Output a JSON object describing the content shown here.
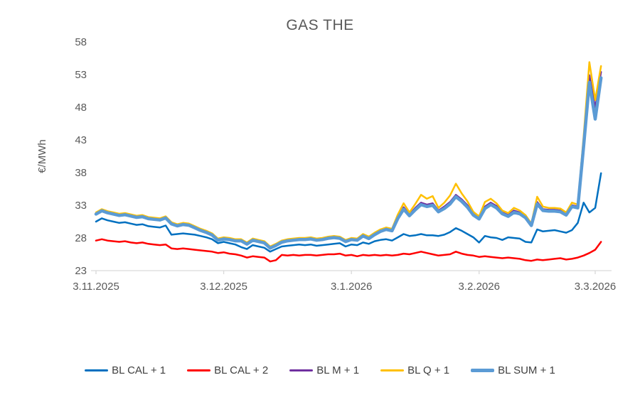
{
  "title": "GAS THE",
  "y_axis_label": "€/MWh",
  "colors": {
    "axis_text": "#595959",
    "axis_line": "#D9D9D9",
    "legend_text": "#404040",
    "background": "#ffffff"
  },
  "chart_data": {
    "type": "line",
    "title": "GAS THE",
    "xlabel": "",
    "ylabel": "€/MWh",
    "ylim": [
      23,
      58
    ],
    "y_ticks": [
      23,
      28,
      33,
      38,
      43,
      48,
      53,
      58
    ],
    "grid": false,
    "legend_position": "bottom",
    "x_tick_labels": [
      "3.11.2025",
      "3.12.2025",
      "3.1.2026",
      "3.2.2026",
      "3.3.2026"
    ],
    "x_tick_indices": [
      0,
      22,
      44,
      66,
      86
    ],
    "dates": [
      "3.11.2025",
      "4.11.2025",
      "5.11.2025",
      "6.11.2025",
      "7.11.2025",
      "10.11.2025",
      "11.11.2025",
      "12.11.2025",
      "13.11.2025",
      "14.11.2025",
      "17.11.2025",
      "18.11.2025",
      "19.11.2025",
      "20.11.2025",
      "21.11.2025",
      "24.11.2025",
      "25.11.2025",
      "26.11.2025",
      "27.11.2025",
      "28.11.2025",
      "1.12.2025",
      "2.12.2025",
      "3.12.2025",
      "4.12.2025",
      "5.12.2025",
      "8.12.2025",
      "9.12.2025",
      "10.12.2025",
      "11.12.2025",
      "12.12.2025",
      "15.12.2025",
      "16.12.2025",
      "17.12.2025",
      "18.12.2025",
      "19.12.2025",
      "22.12.2025",
      "23.12.2025",
      "24.12.2025",
      "25.12.2025",
      "26.12.2025",
      "29.12.2025",
      "30.12.2025",
      "31.12.2025",
      "1.1.2026",
      "2.1.2026",
      "5.1.2026",
      "6.1.2026",
      "7.1.2026",
      "8.1.2026",
      "9.1.2026",
      "12.1.2026",
      "13.1.2026",
      "14.1.2026",
      "15.1.2026",
      "16.1.2026",
      "19.1.2026",
      "20.1.2026",
      "21.1.2026",
      "22.1.2026",
      "23.1.2026",
      "26.1.2026",
      "27.1.2026",
      "28.1.2026",
      "29.1.2026",
      "30.1.2026",
      "2.2.2026",
      "3.2.2026",
      "4.2.2026",
      "5.2.2026",
      "6.2.2026",
      "9.2.2026",
      "10.2.2026",
      "11.2.2026",
      "12.2.2026",
      "13.2.2026",
      "16.2.2026",
      "17.2.2026",
      "18.2.2026",
      "19.2.2026",
      "20.2.2026",
      "23.2.2026",
      "24.2.2026",
      "25.2.2026",
      "26.2.2026",
      "27.2.2026",
      "2.3.2026",
      "3.3.2026",
      "4.3.2026"
    ],
    "series": [
      {
        "name": "BL CAL + 1",
        "color": "#0070C0",
        "width": 2.5,
        "values": [
          30.5,
          31.0,
          30.7,
          30.5,
          30.3,
          30.4,
          30.2,
          30.0,
          30.1,
          29.8,
          29.7,
          29.6,
          29.9,
          28.5,
          28.6,
          28.7,
          28.6,
          28.5,
          28.3,
          28.1,
          27.8,
          27.2,
          27.4,
          27.2,
          27.0,
          26.6,
          26.3,
          26.9,
          26.7,
          26.5,
          25.9,
          26.3,
          26.7,
          26.8,
          26.9,
          27.0,
          26.9,
          27.0,
          26.8,
          26.9,
          27.0,
          27.1,
          27.2,
          26.7,
          27.0,
          26.9,
          27.3,
          27.1,
          27.5,
          27.7,
          27.8,
          27.6,
          28.1,
          28.6,
          28.3,
          28.4,
          28.6,
          28.4,
          28.4,
          28.3,
          28.5,
          28.9,
          29.5,
          29.1,
          28.6,
          28.1,
          27.3,
          28.3,
          28.1,
          28.0,
          27.7,
          28.1,
          28.0,
          27.9,
          27.4,
          27.3,
          29.3,
          29.0,
          29.1,
          29.2,
          29.0,
          28.8,
          29.2,
          30.3,
          33.4,
          31.9,
          32.6,
          37.9
        ]
      },
      {
        "name": "BL CAL + 2",
        "color": "#FF0000",
        "width": 2.5,
        "values": [
          27.6,
          27.8,
          27.6,
          27.5,
          27.4,
          27.5,
          27.3,
          27.2,
          27.3,
          27.1,
          27.0,
          26.9,
          27.0,
          26.4,
          26.3,
          26.4,
          26.3,
          26.2,
          26.1,
          26.0,
          25.9,
          25.7,
          25.8,
          25.6,
          25.5,
          25.3,
          25.0,
          25.2,
          25.1,
          25.0,
          24.4,
          24.6,
          25.4,
          25.3,
          25.4,
          25.3,
          25.4,
          25.4,
          25.3,
          25.4,
          25.5,
          25.5,
          25.6,
          25.3,
          25.4,
          25.2,
          25.4,
          25.3,
          25.4,
          25.3,
          25.4,
          25.3,
          25.4,
          25.6,
          25.5,
          25.7,
          25.9,
          25.7,
          25.5,
          25.3,
          25.4,
          25.5,
          25.9,
          25.6,
          25.4,
          25.3,
          25.1,
          25.2,
          25.1,
          25.0,
          24.9,
          25.0,
          24.9,
          24.8,
          24.6,
          24.5,
          24.7,
          24.6,
          24.7,
          24.8,
          24.9,
          24.7,
          24.8,
          25.0,
          25.3,
          25.7,
          26.2,
          27.4
        ]
      },
      {
        "name": "BL M + 1",
        "color": "#7030A0",
        "width": 2.5,
        "values": [
          31.75,
          32.25,
          31.95,
          31.75,
          31.55,
          31.65,
          31.45,
          31.25,
          31.35,
          31.05,
          30.95,
          30.85,
          31.15,
          30.25,
          29.95,
          30.15,
          30.05,
          29.65,
          29.25,
          28.95,
          28.55,
          27.75,
          27.95,
          27.85,
          27.65,
          27.65,
          27.15,
          27.75,
          27.55,
          27.35,
          26.55,
          26.95,
          27.45,
          27.65,
          27.75,
          27.85,
          27.85,
          27.95,
          27.75,
          27.85,
          28.05,
          28.15,
          28.05,
          27.55,
          27.85,
          27.75,
          28.4,
          28.0,
          28.6,
          29.1,
          29.4,
          29.2,
          31.2,
          32.7,
          31.6,
          32.6,
          33.4,
          33.1,
          33.3,
          32.2,
          32.8,
          33.5,
          34.6,
          33.9,
          33.0,
          31.7,
          31.1,
          32.8,
          33.4,
          32.9,
          31.9,
          31.5,
          32.2,
          31.9,
          31.3,
          30.0,
          33.5,
          32.4,
          32.3,
          32.3,
          32.2,
          31.7,
          33.0,
          32.8,
          42.8,
          52.9,
          47.9,
          53.4
        ]
      },
      {
        "name": "BL Q + 1",
        "color": "#FFC000",
        "width": 2.5,
        "values": [
          31.9,
          32.4,
          32.1,
          31.9,
          31.7,
          31.8,
          31.6,
          31.4,
          31.5,
          31.2,
          31.1,
          31.0,
          31.3,
          30.4,
          30.1,
          30.3,
          30.2,
          29.8,
          29.4,
          29.1,
          28.7,
          27.9,
          28.1,
          28.0,
          27.8,
          27.8,
          27.3,
          27.9,
          27.7,
          27.5,
          26.7,
          27.1,
          27.6,
          27.8,
          27.9,
          28.0,
          28.0,
          28.1,
          27.9,
          28.0,
          28.2,
          28.3,
          28.2,
          27.7,
          28.0,
          27.9,
          28.6,
          28.2,
          28.8,
          29.3,
          29.6,
          29.4,
          31.6,
          33.3,
          31.9,
          33.2,
          34.6,
          34.0,
          34.4,
          32.6,
          33.4,
          34.5,
          36.3,
          34.8,
          33.6,
          32.0,
          31.3,
          33.5,
          34.0,
          33.3,
          32.2,
          31.8,
          32.6,
          32.2,
          31.5,
          30.2,
          34.3,
          32.8,
          32.6,
          32.6,
          32.5,
          31.9,
          33.4,
          33.1,
          43.5,
          54.9,
          49.1,
          54.3
        ]
      },
      {
        "name": "BL SUM + 1",
        "color": "#5B9BD5",
        "width": 4.5,
        "values": [
          31.65,
          32.15,
          31.85,
          31.65,
          31.45,
          31.55,
          31.35,
          31.15,
          31.25,
          30.95,
          30.85,
          30.75,
          31.05,
          30.15,
          29.85,
          30.05,
          29.95,
          29.55,
          29.15,
          28.85,
          28.45,
          27.65,
          27.85,
          27.75,
          27.55,
          27.55,
          27.05,
          27.65,
          27.45,
          27.25,
          26.45,
          26.85,
          27.35,
          27.55,
          27.65,
          27.75,
          27.75,
          27.85,
          27.65,
          27.75,
          27.95,
          28.05,
          27.95,
          27.45,
          27.75,
          27.65,
          28.3,
          27.9,
          28.5,
          29.0,
          29.3,
          29.1,
          31.0,
          32.4,
          31.4,
          32.3,
          33.1,
          32.8,
          33.0,
          32.0,
          32.5,
          33.2,
          34.3,
          33.6,
          32.7,
          31.5,
          30.9,
          32.5,
          33.1,
          32.6,
          31.7,
          31.3,
          31.9,
          31.7,
          31.1,
          29.9,
          33.2,
          32.2,
          32.1,
          32.1,
          32.0,
          31.5,
          32.8,
          32.6,
          42.0,
          51.8,
          46.2,
          52.5
        ]
      }
    ]
  }
}
